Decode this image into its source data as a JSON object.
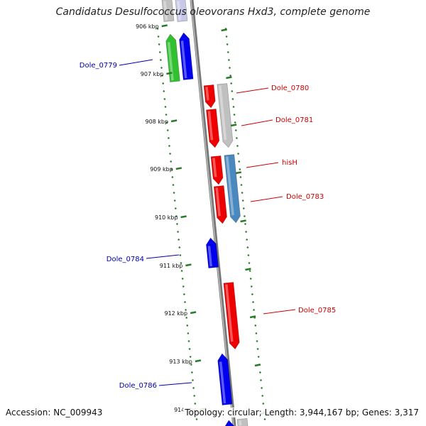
{
  "title": "Candidatus Desulfococcus oleovorans Hxd3, complete genome",
  "accession_text": "Accession: NC_009943",
  "summary_text": "Topology: circular; Length: 3,944,167 bp; Genes: 3,317",
  "colors": {
    "forward_label": "#cc0000",
    "reverse_label": "#0000aa",
    "axis": "#888888",
    "tick": "#2a7a2a"
  },
  "ticks": [
    "906 kbp",
    "907 kbp",
    "908 kbp",
    "909 kbp",
    "910 kbp",
    "911 kbp",
    "912 kbp",
    "913 kbp",
    "914 kbp"
  ],
  "genes": [
    {
      "label": "",
      "color": "#c0c0c0",
      "strand": "reverse",
      "lane": "inner"
    },
    {
      "label": "",
      "color": "#c8c8e8",
      "strand": "reverse",
      "lane": "outer"
    },
    {
      "label": "",
      "color": "#30c030",
      "strand": "reverse",
      "lane": "inner"
    },
    {
      "label": "Dole_0779",
      "color": "#0000ee",
      "strand": "reverse",
      "lane": "outer"
    },
    {
      "label": "Dole_0780",
      "color": "#ee0000",
      "strand": "forward",
      "lane": "inner"
    },
    {
      "label": "Dole_0781",
      "color": "#ee0000",
      "strand": "forward",
      "lane": "inner"
    },
    {
      "label": "",
      "color": "#c0c0c0",
      "strand": "forward",
      "lane": "outer"
    },
    {
      "label": "hisH",
      "color": "#ee0000",
      "strand": "forward",
      "lane": "inner"
    },
    {
      "label": "",
      "color": "#4a88c0",
      "strand": "forward",
      "lane": "outer"
    },
    {
      "label": "Dole_0783",
      "color": "#ee0000",
      "strand": "forward",
      "lane": "inner"
    },
    {
      "label": "Dole_0784",
      "color": "#0000ee",
      "strand": "reverse",
      "lane": "outer"
    },
    {
      "label": "Dole_0785",
      "color": "#ee0000",
      "strand": "forward",
      "lane": "inner"
    },
    {
      "label": "Dole_0786",
      "color": "#0000ee",
      "strand": "reverse",
      "lane": "outer"
    },
    {
      "label": "",
      "color": "#c0c0c0",
      "strand": "forward",
      "lane": "inner"
    },
    {
      "label": "",
      "color": "#0000ee",
      "strand": "reverse",
      "lane": "outer"
    }
  ]
}
